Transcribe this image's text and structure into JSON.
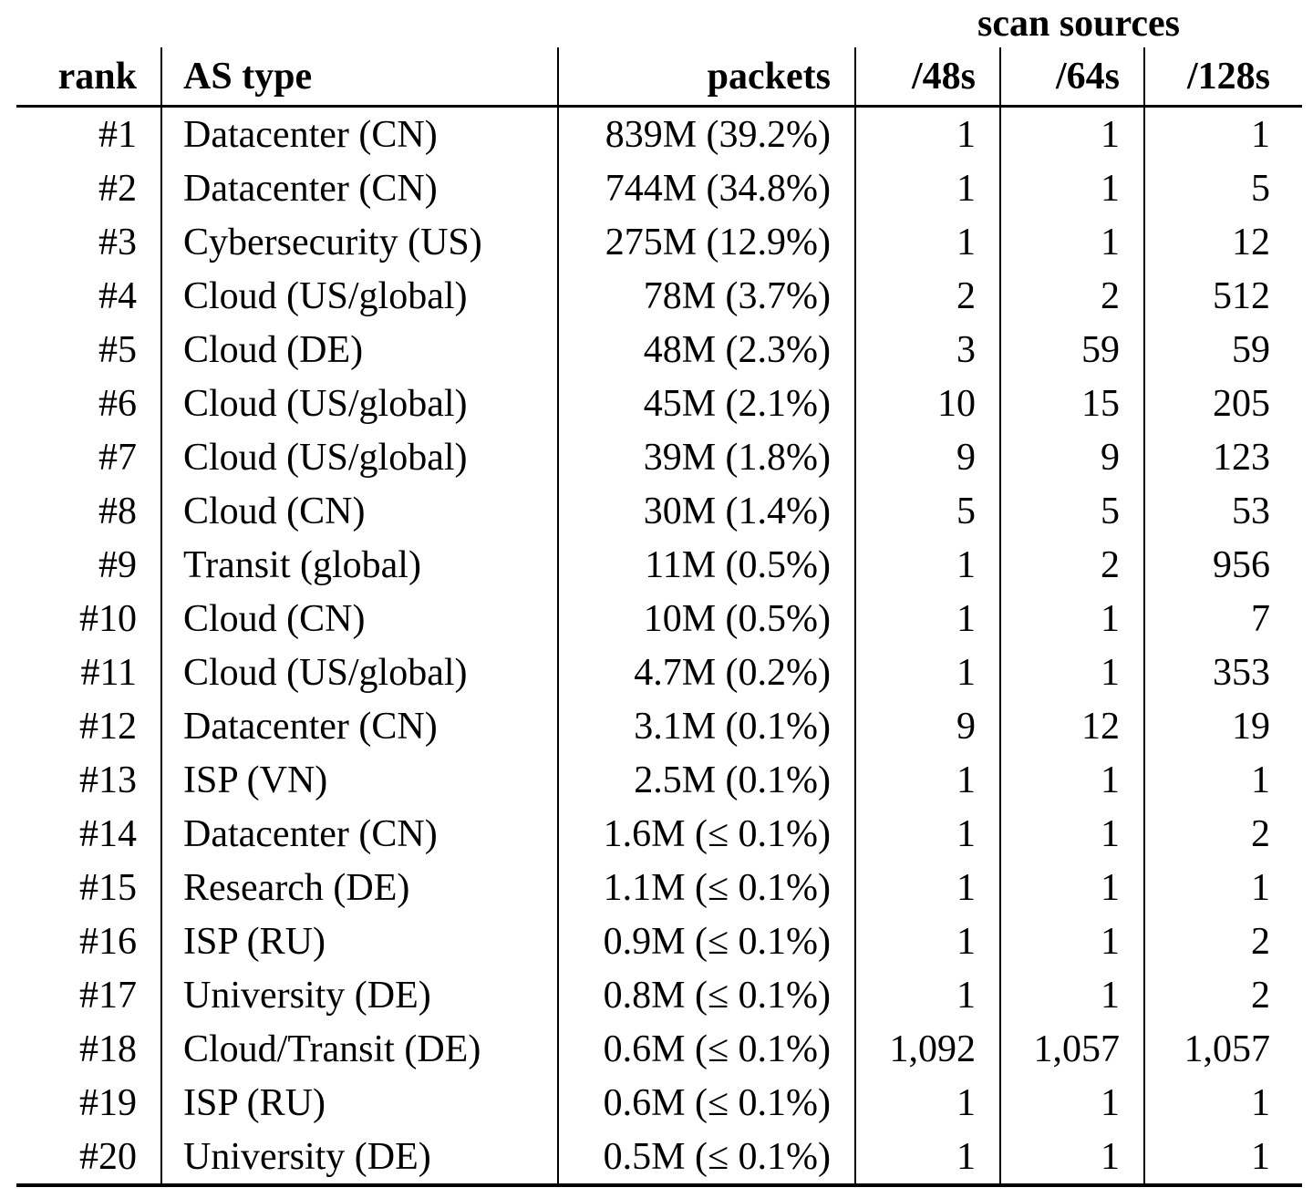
{
  "table": {
    "spanner_label": "scan sources",
    "columns": [
      "rank",
      "AS type",
      "packets",
      "/48s",
      "/64s",
      "/128s"
    ],
    "rows": [
      {
        "rank": "#1",
        "as_type": "Datacenter (CN)",
        "packets": "839M (39.2%)",
        "s48": "1",
        "s64": "1",
        "s128": "1"
      },
      {
        "rank": "#2",
        "as_type": "Datacenter (CN)",
        "packets": "744M (34.8%)",
        "s48": "1",
        "s64": "1",
        "s128": "5"
      },
      {
        "rank": "#3",
        "as_type": "Cybersecurity (US)",
        "packets": "275M (12.9%)",
        "s48": "1",
        "s64": "1",
        "s128": "12"
      },
      {
        "rank": "#4",
        "as_type": "Cloud (US/global)",
        "packets": "78M (3.7%)",
        "s48": "2",
        "s64": "2",
        "s128": "512"
      },
      {
        "rank": "#5",
        "as_type": "Cloud (DE)",
        "packets": "48M (2.3%)",
        "s48": "3",
        "s64": "59",
        "s128": "59"
      },
      {
        "rank": "#6",
        "as_type": "Cloud (US/global)",
        "packets": "45M (2.1%)",
        "s48": "10",
        "s64": "15",
        "s128": "205"
      },
      {
        "rank": "#7",
        "as_type": "Cloud (US/global)",
        "packets": "39M (1.8%)",
        "s48": "9",
        "s64": "9",
        "s128": "123"
      },
      {
        "rank": "#8",
        "as_type": "Cloud (CN)",
        "packets": "30M (1.4%)",
        "s48": "5",
        "s64": "5",
        "s128": "53"
      },
      {
        "rank": "#9",
        "as_type": "Transit (global)",
        "packets": "11M (0.5%)",
        "s48": "1",
        "s64": "2",
        "s128": "956"
      },
      {
        "rank": "#10",
        "as_type": "Cloud (CN)",
        "packets": "10M (0.5%)",
        "s48": "1",
        "s64": "1",
        "s128": "7"
      },
      {
        "rank": "#11",
        "as_type": "Cloud (US/global)",
        "packets": "4.7M (0.2%)",
        "s48": "1",
        "s64": "1",
        "s128": "353"
      },
      {
        "rank": "#12",
        "as_type": "Datacenter (CN)",
        "packets": "3.1M (0.1%)",
        "s48": "9",
        "s64": "12",
        "s128": "19"
      },
      {
        "rank": "#13",
        "as_type": "ISP (VN)",
        "packets": "2.5M (0.1%)",
        "s48": "1",
        "s64": "1",
        "s128": "1"
      },
      {
        "rank": "#14",
        "as_type": "Datacenter (CN)",
        "packets": "1.6M (≤ 0.1%)",
        "s48": "1",
        "s64": "1",
        "s128": "2"
      },
      {
        "rank": "#15",
        "as_type": "Research (DE)",
        "packets": "1.1M (≤ 0.1%)",
        "s48": "1",
        "s64": "1",
        "s128": "1"
      },
      {
        "rank": "#16",
        "as_type": "ISP (RU)",
        "packets": "0.9M (≤ 0.1%)",
        "s48": "1",
        "s64": "1",
        "s128": "2"
      },
      {
        "rank": "#17",
        "as_type": "University (DE)",
        "packets": "0.8M (≤ 0.1%)",
        "s48": "1",
        "s64": "1",
        "s128": "2"
      },
      {
        "rank": "#18",
        "as_type": "Cloud/Transit (DE)",
        "packets": "0.6M (≤ 0.1%)",
        "s48": "1,092",
        "s64": "1,057",
        "s128": "1,057"
      },
      {
        "rank": "#19",
        "as_type": "ISP (RU)",
        "packets": "0.6M (≤ 0.1%)",
        "s48": "1",
        "s64": "1",
        "s128": "1"
      },
      {
        "rank": "#20",
        "as_type": "University (DE)",
        "packets": "0.5M (≤ 0.1%)",
        "s48": "1",
        "s64": "1",
        "s128": "1"
      }
    ]
  }
}
